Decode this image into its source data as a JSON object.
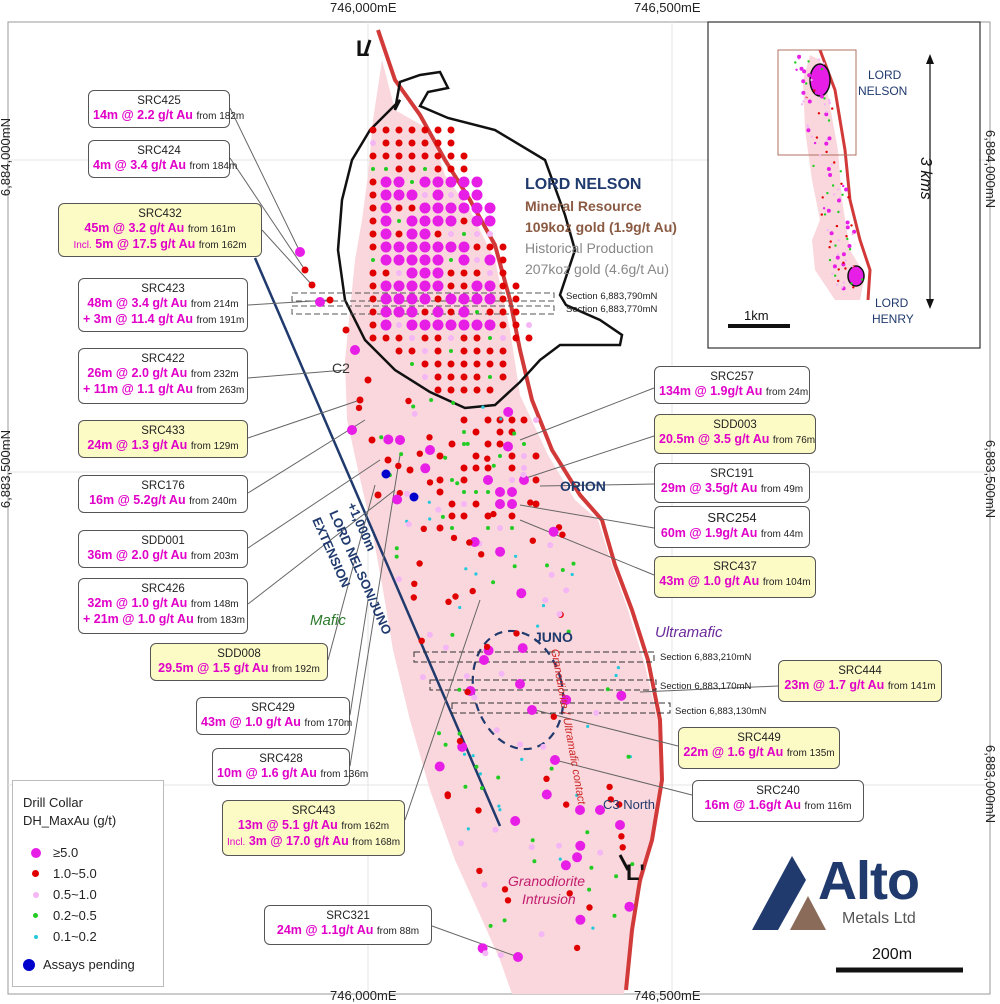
{
  "coords": {
    "top_e1": "746,000mE",
    "top_e2": "746,500mE",
    "bot_e1": "746,000mE",
    "bot_e2": "746,500mE",
    "left_n1": "6,884,000mN",
    "left_n2": "6,883,500mN",
    "right_n1": "6,884,000mN",
    "right_n2": "6,883,500mN",
    "right_n3": "6,883,000mN"
  },
  "deposit": {
    "name": "LORD NELSON",
    "resource_label": "Mineral Resource",
    "resource_value": "109koz gold (1.9g/t Au)",
    "hist_label": "Historical Production",
    "hist_value": "207koz gold (4.6g/t Au)"
  },
  "labels": {
    "orion": "ORION",
    "juno": "JUNO",
    "c2": "C2",
    "c3_north": "C3 North",
    "mafic": "Mafic",
    "ultramafic": "Ultramafic",
    "contact": "Granodiorite / Ultramafic contact",
    "intrusion_1": "Granodiorite",
    "intrusion_2": "Intrusion",
    "extension_1": "+1,000m",
    "extension_2": "LORD NELSON/JUNO",
    "extension_3": "EXTENSION",
    "section_top": "L",
    "section_bottom": "L'"
  },
  "sections": [
    "Section 6,883,790mN",
    "Section 6,883,770mN",
    "Section 6,883,210mN",
    "Section 6,883,170mN",
    "Section 6,883,130mN"
  ],
  "inset": {
    "lord_nelson_1": "LORD",
    "lord_nelson_2": "NELSON",
    "lord_henry_1": "LORD",
    "lord_henry_2": "HENRY",
    "dist": "3 kms",
    "scale": "1km"
  },
  "scale_bar": "200m",
  "logo": {
    "name": "Alto",
    "sub": "Metals Ltd"
  },
  "legend": {
    "title_1": "Drill Collar",
    "title_2": "DH_MaxAu (g/t)",
    "items": [
      {
        "label": "≥5.0",
        "color": "#e61ee6"
      },
      {
        "label": "1.0~5.0",
        "color": "#e00000"
      },
      {
        "label": "0.5~1.0",
        "color": "#f4b6f4"
      },
      {
        "label": "0.2~0.5",
        "color": "#22cc22"
      },
      {
        "label": "0.1~0.2",
        "color": "#22c8dc"
      },
      {
        "label": "Assays pending",
        "color": "#0000cc"
      }
    ]
  },
  "callouts": [
    {
      "hole": "SRC425",
      "r1": "14m @ 2.2 g/t Au",
      "f1": "from 182m"
    },
    {
      "hole": "SRC424",
      "r1": "4m @ 3.4 g/t Au",
      "f1": "from 184m"
    },
    {
      "hole": "SRC432",
      "r1": "45m @ 3.2 g/t Au",
      "f1": "from 161m",
      "inc": "Incl.",
      "r2": "5m @ 17.5 g/t Au",
      "f2": "from 162m"
    },
    {
      "hole": "SRC423",
      "r1": "48m @ 3.4 g/t Au",
      "f1": "from 214m",
      "r2": "+ 3m @ 11.4 g/t Au",
      "f2": "from 191m"
    },
    {
      "hole": "SRC422",
      "r1": "26m @ 2.0 g/t Au",
      "f1": "from 232m",
      "r2": "+ 11m @ 1.1 g/t Au",
      "f2": "from 263m"
    },
    {
      "hole": "SRC433",
      "r1": "24m @ 1.3 g/t Au",
      "f1": "from 129m"
    },
    {
      "hole": "SRC176",
      "r1": "16m @ 5.2g/t Au",
      "f1": "from 240m"
    },
    {
      "hole": "SDD001",
      "r1": "36m @ 2.0 g/t Au",
      "f1": "from 203m"
    },
    {
      "hole": "SRC426",
      "r1": "32m @ 1.0 g/t Au",
      "f1": "from 148m",
      "r2": "+ 21m @ 1.0 g/t Au",
      "f2": "from 183m"
    },
    {
      "hole": "SDD008",
      "r1": "29.5m @ 1.5 g/t Au",
      "f1": "from 192m"
    },
    {
      "hole": "SRC429",
      "r1": "43m @ 1.0 g/t Au",
      "f1": "from 170m"
    },
    {
      "hole": "SRC428",
      "r1": "10m @ 1.6 g/t Au",
      "f1": "from 136m"
    },
    {
      "hole": "SRC443",
      "r1": "13m @ 5.1 g/t Au",
      "f1": "from 162m",
      "inc": "Incl.",
      "r2": "3m @ 17.0 g/t Au",
      "f2": "from 168m"
    },
    {
      "hole": "SRC321",
      "r1": "24m @ 1.1g/t Au",
      "f1": "from 88m"
    },
    {
      "hole": "SRC257",
      "r1": "134m @ 1.9g/t Au",
      "f1": "from 24m"
    },
    {
      "hole": "SDD003",
      "r1": "20.5m @ 3.5 g/t Au",
      "f1": "from 76m"
    },
    {
      "hole": "SRC191",
      "r1": "29m @ 3.5g/t Au",
      "f1": "from 49m"
    },
    {
      "hole": "SRC254",
      "r1": "60m @ 1.9g/t Au",
      "f1": "from 44m"
    },
    {
      "hole": "SRC437",
      "r1": "43m @ 1.0 g/t Au",
      "f1": "from 104m"
    },
    {
      "hole": "SRC444",
      "r1": "23m @ 1.7 g/t Au",
      "f1": "from 141m"
    },
    {
      "hole": "SRC449",
      "r1": "22m @ 1.6 g/t Au",
      "f1": "from 135m"
    },
    {
      "hole": "SRC240",
      "r1": "16m @ 1.6g/t Au",
      "f1": "from 116m"
    }
  ]
}
